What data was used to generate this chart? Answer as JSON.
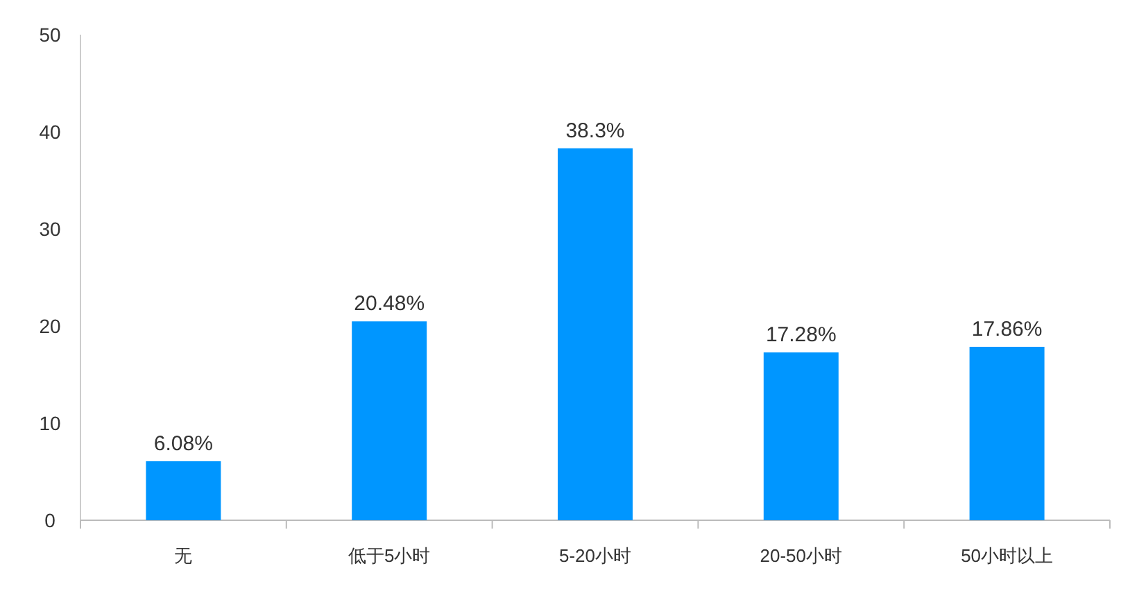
{
  "chart_data": {
    "type": "bar",
    "categories": [
      "无",
      "低于5小时",
      "5-20小时",
      "20-50小时",
      "50小时以上"
    ],
    "values": [
      6.08,
      20.48,
      38.3,
      17.28,
      17.86
    ],
    "value_labels": [
      "6.08%",
      "20.48%",
      "38.3%",
      "17.28%",
      "17.86%"
    ],
    "color": "#0096ff",
    "ylim": [
      0,
      50
    ],
    "yticks": [
      0,
      10,
      20,
      30,
      40,
      50
    ],
    "grid": false
  }
}
